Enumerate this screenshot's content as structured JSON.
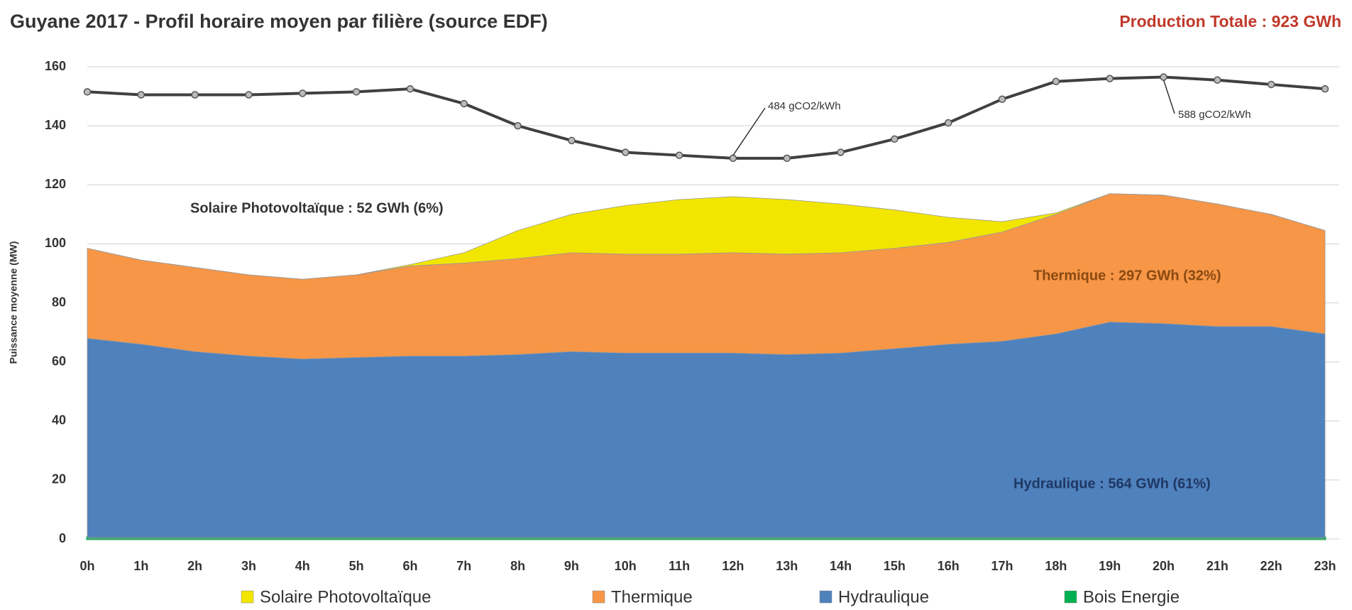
{
  "chart_data": {
    "type": "stacked_area",
    "title": "Guyane 2017 - Profil horaire moyen par filière (source EDF)",
    "subtitle": "Production Totale : 923 GWh",
    "y_label": "Puissance moyenne (MW)",
    "categories": [
      "0h",
      "1h",
      "2h",
      "3h",
      "4h",
      "5h",
      "6h",
      "7h",
      "8h",
      "9h",
      "10h",
      "11h",
      "12h",
      "13h",
      "14h",
      "15h",
      "16h",
      "17h",
      "18h",
      "19h",
      "20h",
      "21h",
      "22h",
      "23h"
    ],
    "series": [
      {
        "name": "Bois Energie",
        "color": "#00b050",
        "values": [
          0.5,
          0.5,
          0.5,
          0.5,
          0.5,
          0.5,
          0.5,
          0.5,
          0.5,
          0.5,
          0.5,
          0.5,
          0.5,
          0.5,
          0.5,
          0.5,
          0.5,
          0.5,
          0.5,
          0.5,
          0.5,
          0.5,
          0.5,
          0.5
        ]
      },
      {
        "name": "Hydraulique",
        "color": "#4f81bd",
        "values": [
          67.5,
          65.5,
          63,
          61.5,
          60.5,
          61,
          61.5,
          61.5,
          62,
          63,
          62.5,
          62.5,
          62.5,
          62,
          62.5,
          64,
          65.5,
          66.5,
          69,
          73,
          72.5,
          71.5,
          71.5,
          69
        ]
      },
      {
        "name": "Thermique",
        "color": "#f79646",
        "values": [
          30.5,
          28.5,
          28.5,
          27.5,
          27,
          28,
          30.5,
          31.5,
          32.5,
          33.5,
          33.5,
          33.5,
          34,
          34,
          34,
          34,
          34.5,
          37,
          40.5,
          43.5,
          43.5,
          41.5,
          38,
          35
        ]
      },
      {
        "name": "Solaire Photovoltaïque",
        "color": "#f2e600",
        "values": [
          0,
          0,
          0,
          0,
          0,
          0,
          0.5,
          3.5,
          9.5,
          13,
          16.5,
          18.5,
          19,
          18.5,
          16.5,
          13,
          8.5,
          3.5,
          0.5,
          0,
          0,
          0,
          0,
          0
        ]
      },
      {
        "type": "line",
        "color": "#404040",
        "values": [
          151.5,
          150.5,
          150.5,
          150.5,
          151,
          151.5,
          152.5,
          147.5,
          140,
          135,
          131,
          130,
          129,
          129,
          131,
          135.5,
          141,
          149,
          155,
          156,
          156.5,
          155.5,
          154,
          152.5
        ]
      }
    ],
    "annotations": [
      "484 gCO2/kWh",
      "588 gCO2/kWh",
      "Solaire Photovoltaïque : 52 GWh  (6%)",
      "Thermique : 297 GWh  (32%)",
      "Hydraulique : 564 GWh  (61%)"
    ],
    "ylim": [
      0,
      160
    ],
    "yticks": [
      0,
      20,
      40,
      60,
      80,
      100,
      120,
      140,
      160
    ],
    "grid": true
  }
}
